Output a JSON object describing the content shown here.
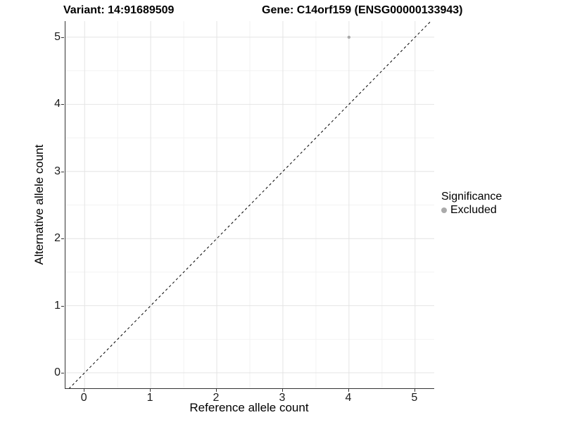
{
  "figure": {
    "title_left": "Variant: 14:91689509",
    "title_right": "Gene: C14orf159 (ENSG00000133943)"
  },
  "chart_data": {
    "type": "scatter",
    "title": "Variant: 14:91689509    Gene: C14orf159 (ENSG00000133943)",
    "xlabel": "Reference allele count",
    "ylabel": "Alternative allele count",
    "xlim": [
      -0.29,
      5.29
    ],
    "ylim": [
      -0.23,
      5.24
    ],
    "xticks": [
      0,
      1,
      2,
      3,
      4,
      5
    ],
    "yticks": [
      0,
      1,
      2,
      3,
      4,
      5
    ],
    "minor_xticks": [
      0.5,
      1.5,
      2.5,
      3.5,
      4.5
    ],
    "minor_yticks": [
      0.5,
      1.5,
      2.5,
      3.5,
      4.5
    ],
    "grid": true,
    "series": [
      {
        "name": "Excluded",
        "color": "#aaaaaa",
        "marker_radius": 2.2,
        "points": [
          {
            "x": 4,
            "y": 5
          }
        ]
      }
    ],
    "reference_line": {
      "type": "identity",
      "style": "dashed",
      "color": "#000000"
    },
    "legend": {
      "title": "Significance",
      "position": "right",
      "items": [
        {
          "label": "Excluded",
          "color": "#aaaaaa"
        }
      ]
    },
    "colors": {
      "background": "#ffffff",
      "grid_major": "#e4e4e4",
      "grid_minor": "#f2f2f2",
      "axis_line": "#333333",
      "tick": "#333333",
      "text": "#000000"
    }
  }
}
